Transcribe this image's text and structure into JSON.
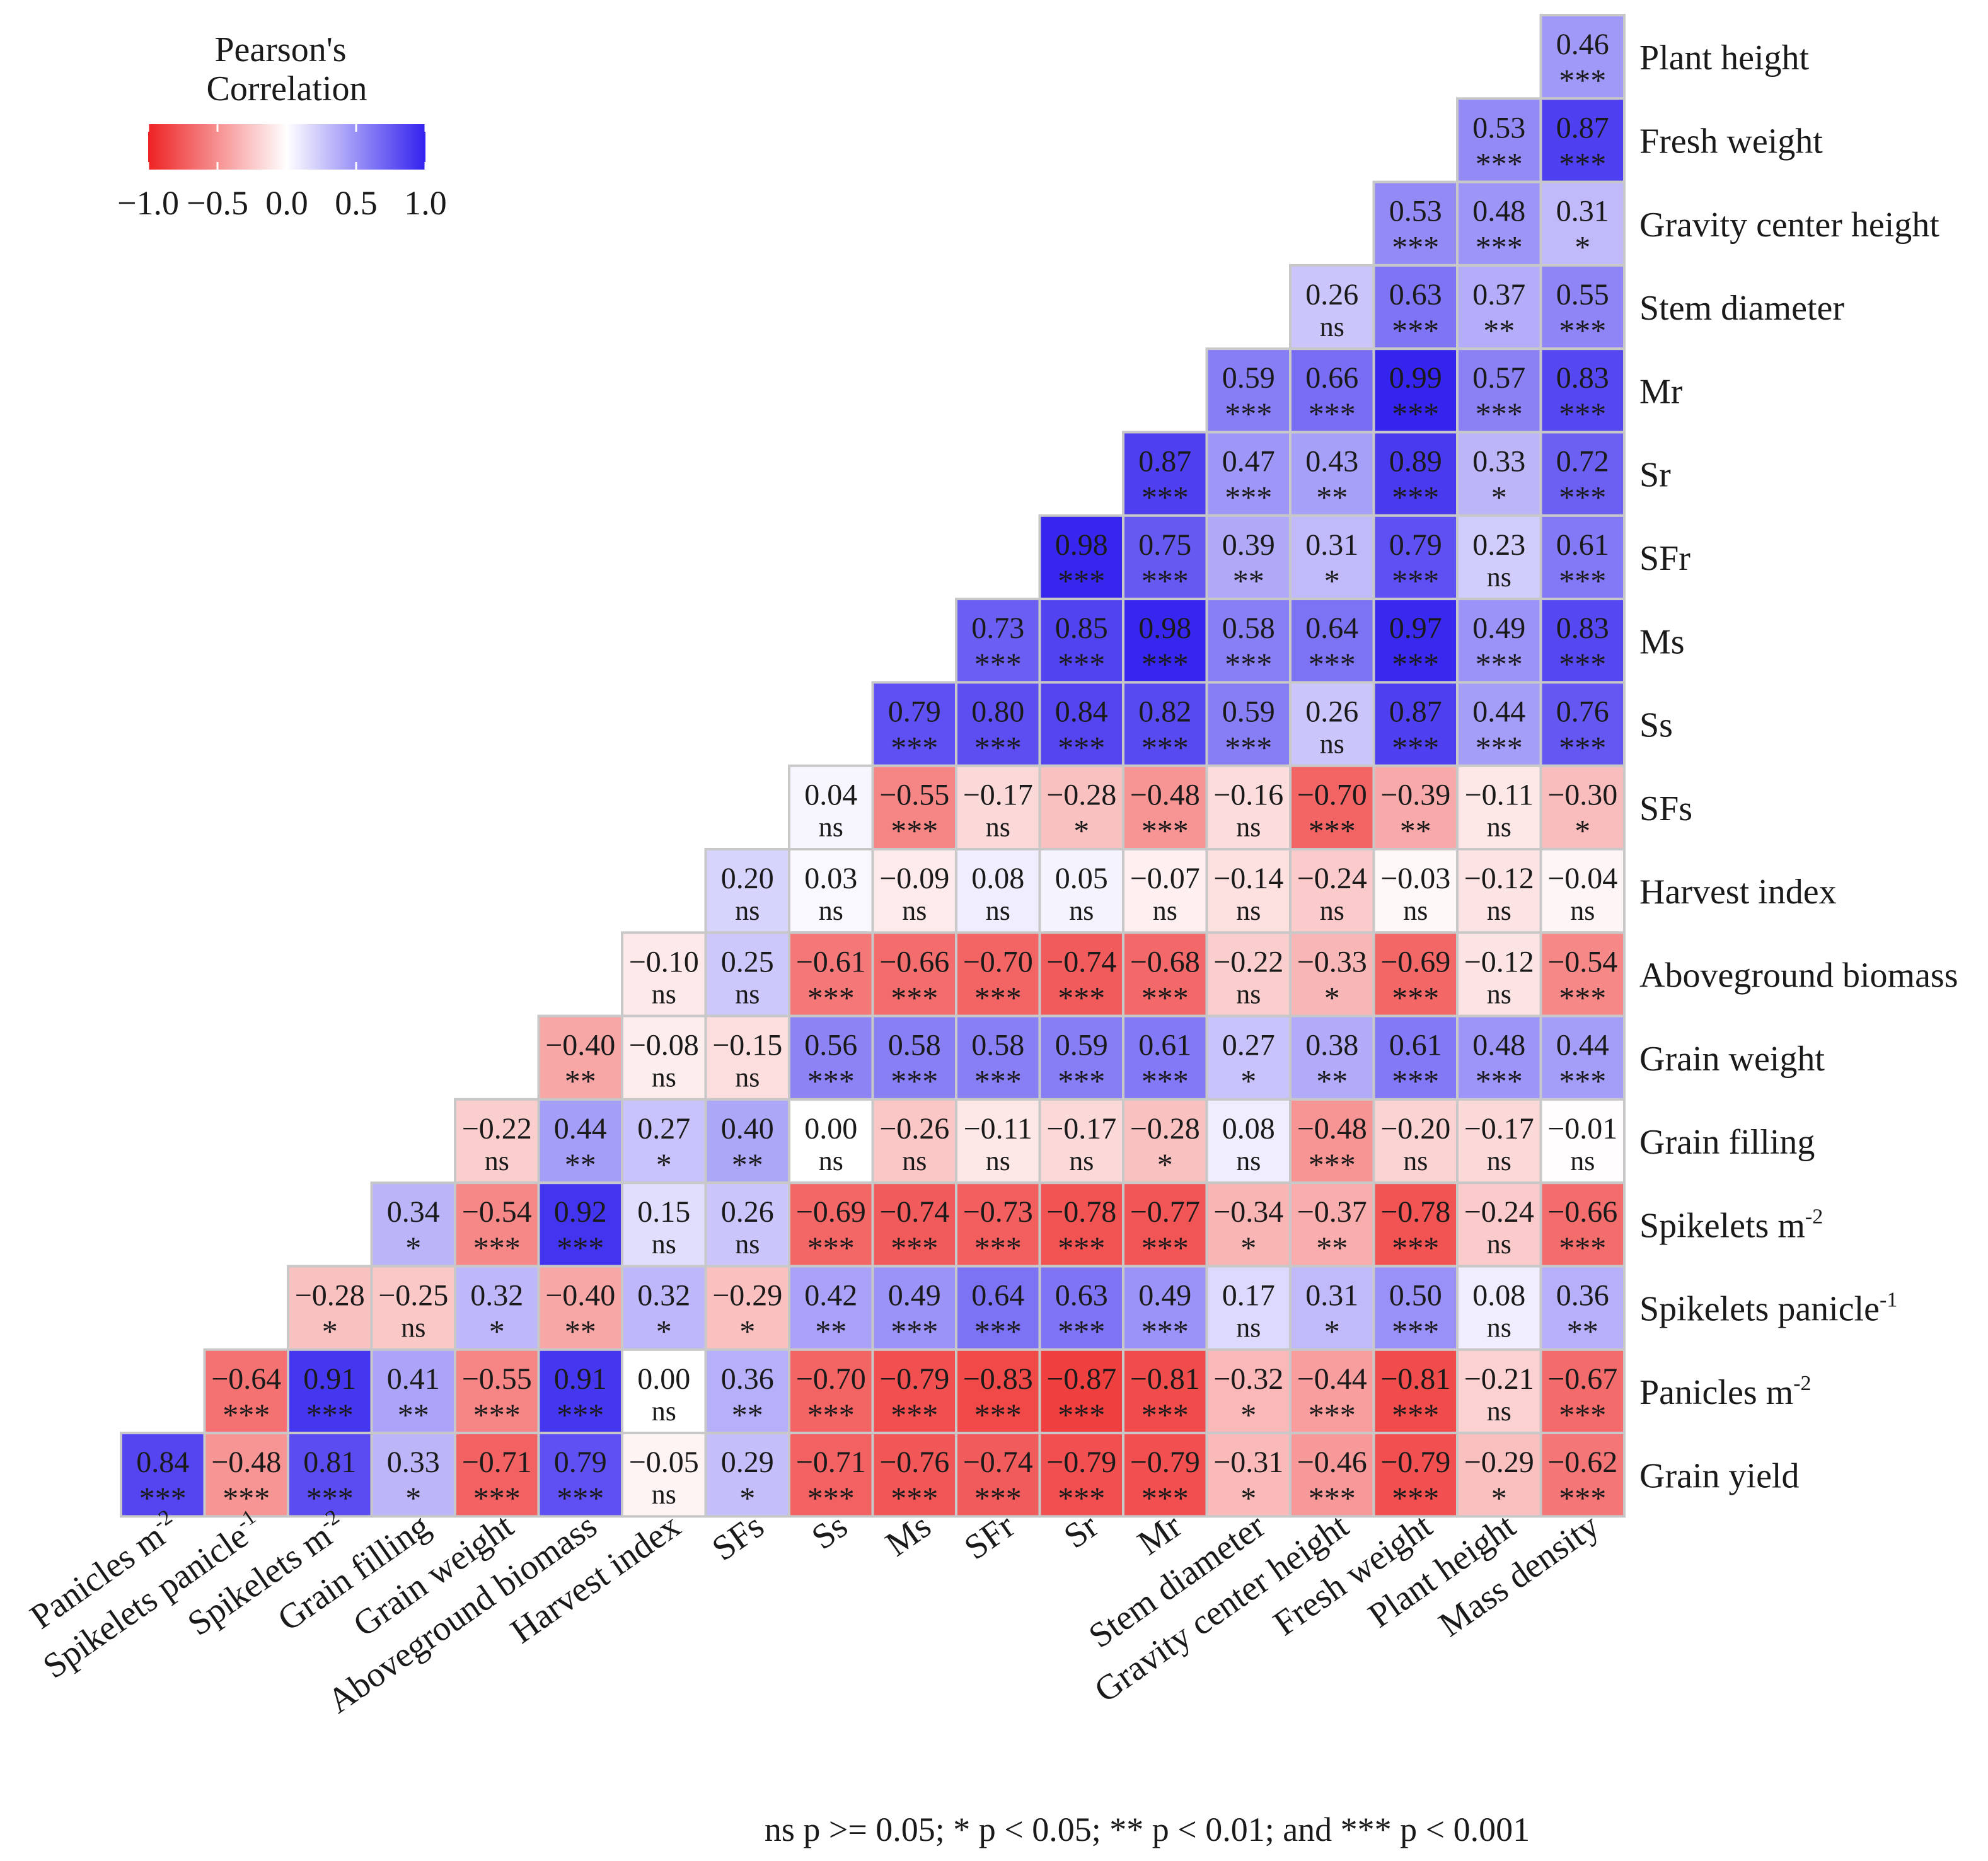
{
  "chart_data": {
    "type": "heatmap",
    "legend": {
      "title_line1": "Pearson's",
      "title_line2": "Correlation",
      "ticks": [
        "−1.0",
        "−0.5",
        "0.0",
        "0.5",
        "1.0"
      ],
      "tick_values": [
        -1.0,
        -0.5,
        0.0,
        0.5,
        1.0
      ],
      "placement": "top-left"
    },
    "color_scale": {
      "negative": "#ee2222",
      "zero": "#ffffff",
      "positive": "#3322ee",
      "min": -1,
      "max": 1
    },
    "cell_border_color": "#c8c8c8",
    "row_labels": [
      {
        "name": "Plant height"
      },
      {
        "name": "Fresh weight"
      },
      {
        "name": "Gravity center height"
      },
      {
        "name": "Stem diameter"
      },
      {
        "name": "Mr"
      },
      {
        "name": "Sr"
      },
      {
        "name": "SFr"
      },
      {
        "name": "Ms"
      },
      {
        "name": "Ss"
      },
      {
        "name": "SFs"
      },
      {
        "name": "Harvest index"
      },
      {
        "name": "Aboveground biomass"
      },
      {
        "name": "Grain weight"
      },
      {
        "name": "Grain filling"
      },
      {
        "name": "Spikelets m",
        "sup": "-2"
      },
      {
        "name": "Spikelets panicle",
        "sup": "-1"
      },
      {
        "name": "Panicles m",
        "sup": "-2"
      },
      {
        "name": "Grain yield"
      }
    ],
    "column_labels": [
      {
        "name": "Panicles m",
        "sup": "-2"
      },
      {
        "name": "Spikelets panicle",
        "sup": "-1"
      },
      {
        "name": "Spikelets m",
        "sup": "-2"
      },
      {
        "name": "Grain filling"
      },
      {
        "name": "Grain weight"
      },
      {
        "name": "Aboveground biomass"
      },
      {
        "name": "Harvest index"
      },
      {
        "name": "SFs"
      },
      {
        "name": "Ss"
      },
      {
        "name": "Ms"
      },
      {
        "name": "SFr"
      },
      {
        "name": "Sr"
      },
      {
        "name": "Mr"
      },
      {
        "name": "Stem diameter"
      },
      {
        "name": "Gravity center height"
      },
      {
        "name": "Fresh weight"
      },
      {
        "name": "Plant height"
      },
      {
        "name": "Mass density"
      }
    ],
    "values": [
      [
        0.46
      ],
      [
        0.53,
        0.87
      ],
      [
        0.53,
        0.48,
        0.31
      ],
      [
        0.26,
        0.63,
        0.37,
        0.55
      ],
      [
        0.59,
        0.66,
        0.99,
        0.57,
        0.83
      ],
      [
        0.87,
        0.47,
        0.43,
        0.89,
        0.33,
        0.72
      ],
      [
        0.98,
        0.75,
        0.39,
        0.31,
        0.79,
        0.23,
        0.61
      ],
      [
        0.73,
        0.85,
        0.98,
        0.58,
        0.64,
        0.97,
        0.49,
        0.83
      ],
      [
        0.79,
        0.8,
        0.84,
        0.82,
        0.59,
        0.26,
        0.87,
        0.44,
        0.76
      ],
      [
        0.04,
        -0.55,
        -0.17,
        -0.28,
        -0.48,
        -0.16,
        -0.7,
        -0.39,
        -0.11,
        -0.3
      ],
      [
        0.2,
        0.03,
        -0.09,
        0.08,
        0.05,
        -0.07,
        -0.14,
        -0.24,
        -0.03,
        -0.12,
        -0.04
      ],
      [
        -0.1,
        0.25,
        -0.61,
        -0.66,
        -0.7,
        -0.74,
        -0.68,
        -0.22,
        -0.33,
        -0.69,
        -0.12,
        -0.54
      ],
      [
        -0.4,
        -0.08,
        -0.15,
        0.56,
        0.58,
        0.58,
        0.59,
        0.61,
        0.27,
        0.38,
        0.61,
        0.48,
        0.44
      ],
      [
        -0.22,
        0.44,
        0.27,
        0.4,
        0.0,
        -0.26,
        -0.11,
        -0.17,
        -0.28,
        0.08,
        -0.48,
        -0.2,
        -0.17,
        -0.01
      ],
      [
        0.34,
        -0.54,
        0.92,
        0.15,
        0.26,
        -0.69,
        -0.74,
        -0.73,
        -0.78,
        -0.77,
        -0.34,
        -0.37,
        -0.78,
        -0.24,
        -0.66
      ],
      [
        -0.28,
        -0.25,
        0.32,
        -0.4,
        0.32,
        -0.29,
        0.42,
        0.49,
        0.64,
        0.63,
        0.49,
        0.17,
        0.31,
        0.5,
        0.08,
        0.36
      ],
      [
        -0.64,
        0.91,
        0.41,
        -0.55,
        0.91,
        0.0,
        0.36,
        -0.7,
        -0.79,
        -0.83,
        -0.87,
        -0.81,
        -0.32,
        -0.44,
        -0.81,
        -0.21,
        -0.67
      ],
      [
        0.84,
        -0.48,
        0.81,
        0.33,
        -0.71,
        0.79,
        -0.05,
        0.29,
        -0.71,
        -0.76,
        -0.74,
        -0.79,
        -0.79,
        -0.31,
        -0.46,
        -0.79,
        -0.29,
        -0.62
      ]
    ],
    "significance": [
      [
        "***"
      ],
      [
        "***",
        "***"
      ],
      [
        "***",
        "***",
        "*"
      ],
      [
        "ns",
        "***",
        "**",
        "***"
      ],
      [
        "***",
        "***",
        "***",
        "***",
        "***"
      ],
      [
        "***",
        "***",
        "**",
        "***",
        "*",
        "***"
      ],
      [
        "***",
        "***",
        "**",
        "*",
        "***",
        "ns",
        "***"
      ],
      [
        "***",
        "***",
        "***",
        "***",
        "***",
        "***",
        "***",
        "***"
      ],
      [
        "***",
        "***",
        "***",
        "***",
        "***",
        "ns",
        "***",
        "***",
        "***"
      ],
      [
        "ns",
        "***",
        "ns",
        "*",
        "***",
        "ns",
        "***",
        "**",
        "ns",
        "*"
      ],
      [
        "ns",
        "ns",
        "ns",
        "ns",
        "ns",
        "ns",
        "ns",
        "ns",
        "ns",
        "ns",
        "ns"
      ],
      [
        "ns",
        "ns",
        "***",
        "***",
        "***",
        "***",
        "***",
        "ns",
        "*",
        "***",
        "ns",
        "***"
      ],
      [
        "**",
        "ns",
        "ns",
        "***",
        "***",
        "***",
        "***",
        "***",
        "*",
        "**",
        "***",
        "***",
        "***"
      ],
      [
        "ns",
        "**",
        "*",
        "**",
        "ns",
        "ns",
        "ns",
        "ns",
        "*",
        "ns",
        "***",
        "ns",
        "ns",
        "ns"
      ],
      [
        "*",
        "***",
        "***",
        "ns",
        "ns",
        "***",
        "***",
        "***",
        "***",
        "***",
        "*",
        "**",
        "***",
        "ns",
        "***"
      ],
      [
        "*",
        "ns",
        "*",
        "**",
        "*",
        "*",
        "**",
        "***",
        "***",
        "***",
        "***",
        "ns",
        "*",
        "***",
        "ns",
        "**"
      ],
      [
        "***",
        "***",
        "**",
        "***",
        "***",
        "ns",
        "**",
        "***",
        "***",
        "***",
        "***",
        "***",
        "*",
        "***",
        "***",
        "ns",
        "***"
      ],
      [
        "***",
        "***",
        "***",
        "*",
        "***",
        "***",
        "ns",
        "*",
        "***",
        "***",
        "***",
        "***",
        "***",
        "*",
        "***",
        "***",
        "*",
        "***"
      ]
    ],
    "footnote": "ns p >= 0.05; * p < 0.05; ** p < 0.01; and *** p < 0.001"
  }
}
